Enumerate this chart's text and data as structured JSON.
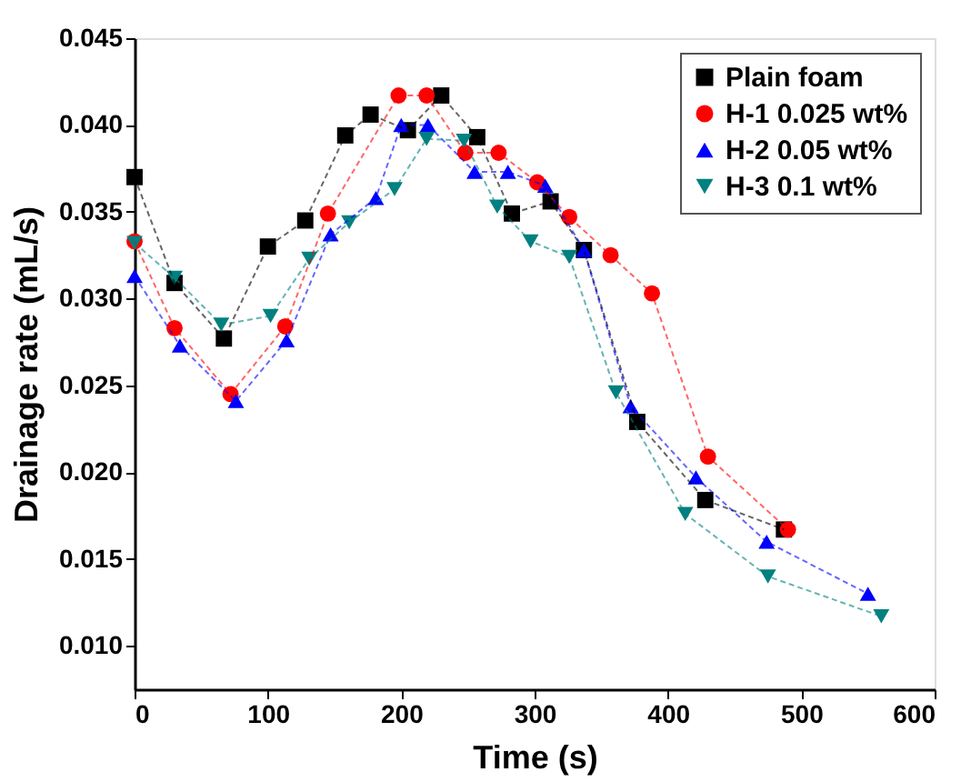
{
  "chart_data": {
    "type": "line",
    "xlabel": "Time (s)",
    "ylabel": "Drainage rate (mL/s)",
    "xlim": [
      0,
      600
    ],
    "xticks": [
      0,
      100,
      200,
      300,
      400,
      500,
      600
    ],
    "ylim": [
      0.0075,
      0.045
    ],
    "yticks": [
      {
        "value": 0.01,
        "label": "0.010"
      },
      0.015,
      {
        "value": 0.02,
        "label": "0.020"
      },
      0.025,
      {
        "value": 0.03,
        "label": "0.030"
      },
      0.035,
      {
        "value": 0.04,
        "label": "0.040"
      },
      0.045
    ],
    "line_style": "dashed",
    "legend": "top right",
    "grid": false,
    "series": [
      {
        "name": "Plain foam",
        "color": "#000000",
        "marker": "square",
        "x": [
          0,
          30,
          67,
          100,
          128,
          158,
          177,
          205,
          230,
          257,
          283,
          312,
          337,
          377,
          428,
          487
        ],
        "values": [
          0.037,
          0.0309,
          0.0277,
          0.033,
          0.0345,
          0.0394,
          0.0406,
          0.0397,
          0.0417,
          0.0393,
          0.0349,
          0.0356,
          0.0328,
          0.0229,
          0.0184,
          0.0167
        ]
      },
      {
        "name": "H-1 0.025 wt%",
        "color": "#ff0000",
        "marker": "circle",
        "x": [
          0,
          30,
          72,
          113,
          145,
          198,
          219,
          248,
          273,
          302,
          326,
          357,
          388,
          430,
          490
        ],
        "values": [
          0.0333,
          0.0283,
          0.0245,
          0.0284,
          0.0349,
          0.0417,
          0.0417,
          0.0384,
          0.0384,
          0.0367,
          0.0347,
          0.0325,
          0.0303,
          0.0209,
          0.0167
        ]
      },
      {
        "name": "H-2 0.05 wt%",
        "color": "#0000ff",
        "marker": "triangle-up",
        "x": [
          0,
          34,
          76,
          114,
          147,
          181,
          200,
          220,
          255,
          280,
          308,
          337,
          372,
          421,
          474,
          550
        ],
        "values": [
          0.0313,
          0.0273,
          0.0241,
          0.0276,
          0.0337,
          0.0358,
          0.04,
          0.04,
          0.0373,
          0.0373,
          0.0365,
          0.0328,
          0.0238,
          0.0197,
          0.016,
          0.013
        ]
      },
      {
        "name": "H-3 0.1 wt%",
        "color": "#008080",
        "marker": "triangle-down",
        "x": [
          0,
          30,
          65,
          102,
          131,
          161,
          195,
          219,
          247,
          272,
          297,
          326,
          361,
          413,
          475,
          560
        ],
        "values": [
          0.0332,
          0.0312,
          0.0285,
          0.029,
          0.0323,
          0.0344,
          0.0363,
          0.0392,
          0.0391,
          0.0353,
          0.0333,
          0.0324,
          0.0246,
          0.0176,
          0.014,
          0.0117
        ]
      }
    ]
  }
}
